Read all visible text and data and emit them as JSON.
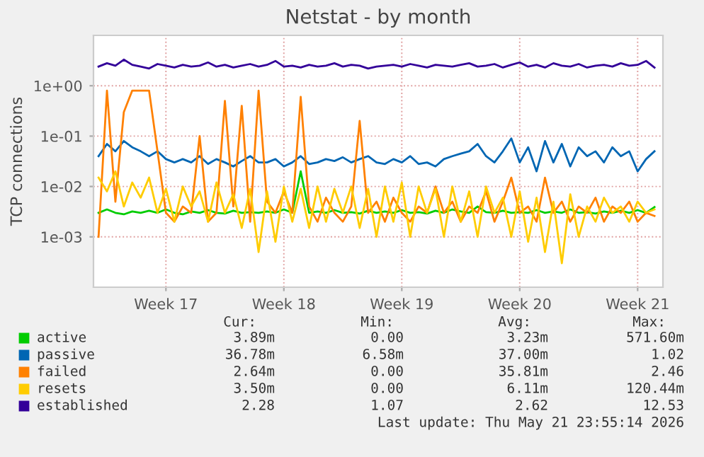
{
  "chart_data": {
    "type": "line",
    "title": "Netstat - by month",
    "ylabel": "TCP connections",
    "categories": [
      null,
      null,
      null,
      null,
      null,
      null,
      null,
      null,
      "Week 17",
      null,
      null,
      null,
      null,
      null,
      null,
      null,
      null,
      null,
      null,
      null,
      null,
      null,
      "Week 18",
      null,
      null,
      null,
      null,
      null,
      null,
      null,
      null,
      null,
      null,
      null,
      null,
      null,
      "Week 19",
      null,
      null,
      null,
      null,
      null,
      null,
      null,
      null,
      null,
      null,
      null,
      null,
      null,
      "Week 20",
      null,
      null,
      null,
      null,
      null,
      null,
      null,
      null,
      null,
      null,
      null,
      null,
      null,
      "Week 21",
      null,
      null
    ],
    "log": "y",
    "ylim": [
      0.0001,
      10
    ],
    "yticks": [
      {
        "value": 0.001,
        "label": "1e-03"
      },
      {
        "value": 0.01,
        "label": "1e-02"
      },
      {
        "value": 0.1,
        "label": "1e-01"
      },
      {
        "value": 1,
        "label": "1e+00"
      }
    ],
    "grid": true,
    "legend": "bottom",
    "series": [
      {
        "name": "active",
        "color": "#00cc00",
        "values": [
          0.003,
          0.0035,
          0.003,
          0.0028,
          0.0032,
          0.003,
          0.0033,
          0.003,
          0.0035,
          0.003,
          0.0028,
          0.0032,
          0.003,
          0.0034,
          0.003,
          0.0029,
          0.0033,
          0.003,
          0.0031,
          0.003,
          0.0032,
          0.003,
          0.0035,
          0.003,
          0.02,
          0.003,
          0.0032,
          0.003,
          0.0034,
          0.003,
          0.0031,
          0.0029,
          0.0033,
          0.003,
          0.0032,
          0.003,
          0.0034,
          0.003,
          0.0031,
          0.0029,
          0.0033,
          0.003,
          0.0035,
          0.0032,
          0.003,
          0.004,
          0.0031,
          0.003,
          0.0033,
          0.003,
          0.0031,
          0.003,
          0.0034,
          0.003,
          0.0032,
          0.003,
          0.0035,
          0.003,
          0.0031,
          0.0029,
          0.0032,
          0.003,
          0.0033,
          0.003,
          0.0034,
          0.003,
          0.0039
        ]
      },
      {
        "name": "passive",
        "color": "#0066b3",
        "values": [
          0.04,
          0.07,
          0.05,
          0.08,
          0.06,
          0.05,
          0.04,
          0.05,
          0.035,
          0.03,
          0.035,
          0.03,
          0.04,
          0.028,
          0.035,
          0.03,
          0.025,
          0.032,
          0.04,
          0.03,
          0.03,
          0.035,
          0.025,
          0.03,
          0.04,
          0.028,
          0.03,
          0.035,
          0.032,
          0.038,
          0.03,
          0.035,
          0.04,
          0.03,
          0.028,
          0.035,
          0.03,
          0.04,
          0.028,
          0.03,
          0.025,
          0.035,
          0.04,
          0.045,
          0.05,
          0.07,
          0.04,
          0.03,
          0.05,
          0.09,
          0.03,
          0.06,
          0.02,
          0.08,
          0.03,
          0.07,
          0.025,
          0.06,
          0.04,
          0.05,
          0.03,
          0.06,
          0.04,
          0.05,
          0.02,
          0.035,
          0.05
        ]
      },
      {
        "name": "failed",
        "color": "#ff8000",
        "values": [
          0.001,
          0.8,
          0.005,
          0.3,
          0.8,
          0.8,
          0.8,
          0.05,
          0.003,
          0.002,
          0.004,
          0.003,
          0.1,
          0.002,
          0.003,
          0.5,
          0.004,
          0.4,
          0.002,
          0.8,
          0.005,
          0.003,
          0.008,
          0.003,
          0.6,
          0.004,
          0.002,
          0.006,
          0.003,
          0.002,
          0.004,
          0.2,
          0.003,
          0.005,
          0.002,
          0.006,
          0.003,
          0.002,
          0.004,
          0.003,
          0.01,
          0.003,
          0.005,
          0.002,
          0.004,
          0.003,
          0.008,
          0.002,
          0.005,
          0.015,
          0.003,
          0.004,
          0.002,
          0.015,
          0.003,
          0.005,
          0.002,
          0.004,
          0.003,
          0.006,
          0.002,
          0.004,
          0.003,
          0.005,
          0.002,
          0.003,
          0.0026
        ]
      },
      {
        "name": "resets",
        "color": "#ffcc00",
        "values": [
          0.015,
          0.008,
          0.02,
          0.004,
          0.012,
          0.006,
          0.015,
          0.003,
          0.009,
          0.002,
          0.01,
          0.004,
          0.008,
          0.002,
          0.012,
          0.003,
          0.007,
          0.0015,
          0.009,
          0.0005,
          0.008,
          0.0008,
          0.01,
          0.002,
          0.009,
          0.0015,
          0.01,
          0.002,
          0.009,
          0.003,
          0.01,
          0.0015,
          0.009,
          0.001,
          0.01,
          0.002,
          0.012,
          0.001,
          0.01,
          0.003,
          0.009,
          0.001,
          0.01,
          0.002,
          0.008,
          0.001,
          0.01,
          0.003,
          0.006,
          0.001,
          0.008,
          0.0008,
          0.006,
          0.0005,
          0.005,
          0.0003,
          0.007,
          0.001,
          0.004,
          0.002,
          0.006,
          0.003,
          0.004,
          0.002,
          0.005,
          0.003,
          0.0035
        ]
      },
      {
        "name": "established",
        "color": "#330099",
        "values": [
          2.4,
          2.8,
          2.5,
          3.3,
          2.6,
          2.4,
          2.2,
          2.7,
          2.5,
          2.3,
          2.6,
          2.4,
          2.5,
          2.9,
          2.4,
          2.6,
          2.3,
          2.5,
          2.7,
          2.4,
          2.6,
          3.1,
          2.4,
          2.5,
          2.3,
          2.6,
          2.4,
          2.5,
          2.8,
          2.4,
          2.6,
          2.5,
          2.2,
          2.4,
          2.5,
          2.6,
          2.4,
          2.7,
          2.5,
          2.3,
          2.6,
          2.5,
          2.4,
          2.6,
          2.8,
          2.4,
          2.5,
          2.7,
          2.3,
          2.6,
          2.9,
          2.4,
          2.6,
          2.3,
          2.8,
          2.5,
          2.4,
          2.7,
          2.3,
          2.5,
          2.6,
          2.4,
          2.8,
          2.5,
          2.6,
          3.1,
          2.3
        ]
      }
    ],
    "annotations": [
      "Cur:",
      "Min:",
      "Avg:",
      "Max:",
      "3.89m",
      "0.00",
      "3.23m",
      "571.60m",
      "36.78m",
      "6.58m",
      "37.00m",
      "1.02",
      "2.64m",
      "0.00",
      "35.81m",
      "2.46",
      "3.50m",
      "0.00",
      "6.11m",
      "120.44m",
      "2.28",
      "1.07",
      "2.62",
      "12.53",
      "Last update: Thu May 21 23:55:14 2026"
    ]
  }
}
